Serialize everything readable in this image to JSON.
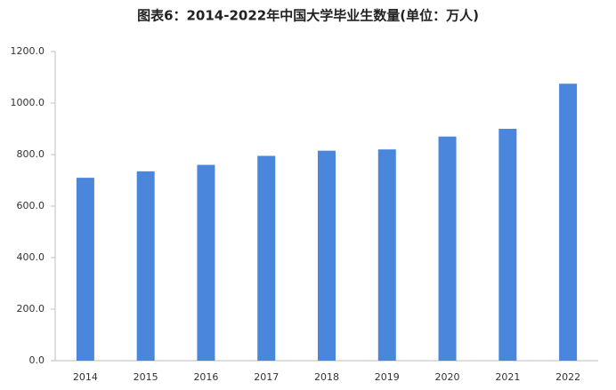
{
  "chart_data": {
    "type": "bar",
    "title": "图表6：2014-2022年中国大学毕业生数量(单位：万人)",
    "categories": [
      "2014",
      "2015",
      "2016",
      "2017",
      "2018",
      "2019",
      "2020",
      "2021",
      "2022"
    ],
    "values": [
      710,
      735,
      760,
      795,
      815,
      820,
      870,
      900,
      1075
    ],
    "color": "#4a86dc",
    "ylim": [
      0,
      1200
    ],
    "yticks": [
      {
        "value": 0,
        "label": "0.0"
      },
      {
        "value": 200,
        "label": "200.0"
      },
      {
        "value": 400,
        "label": "400.0"
      },
      {
        "value": 600,
        "label": "600.0"
      },
      {
        "value": 800,
        "label": "800.0"
      },
      {
        "value": 1000,
        "label": "1000.0"
      },
      {
        "value": 1200,
        "label": "1200.0"
      }
    ],
    "grid": false
  }
}
